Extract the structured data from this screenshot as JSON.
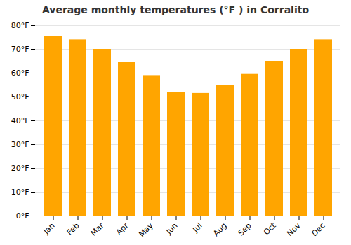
{
  "chart_data": {
    "type": "bar",
    "title": "Average monthly temperatures (°F ) in Corralito",
    "categories": [
      "Jan",
      "Feb",
      "Mar",
      "Apr",
      "May",
      "Jun",
      "Jul",
      "Aug",
      "Sep",
      "Oct",
      "Nov",
      "Dec"
    ],
    "values": [
      75.5,
      74.0,
      70.0,
      64.5,
      59.0,
      52.0,
      51.5,
      55.0,
      59.5,
      65.0,
      70.0,
      74.0
    ],
    "color": "#FFA500",
    "ylim": [
      0,
      80
    ],
    "yticks": [
      {
        "value": 0,
        "label": "0°F"
      },
      {
        "value": 10,
        "label": "10°F"
      },
      {
        "value": 20,
        "label": "20°F"
      },
      {
        "value": 30,
        "label": "30°F"
      },
      {
        "value": 40,
        "label": "40°F"
      },
      {
        "value": 50,
        "label": "50°F"
      },
      {
        "value": 60,
        "label": "60°F"
      },
      {
        "value": 70,
        "label": "70°F"
      },
      {
        "value": 80,
        "label": "80°F"
      }
    ],
    "grid": true
  }
}
